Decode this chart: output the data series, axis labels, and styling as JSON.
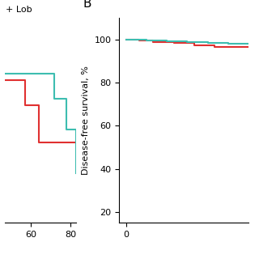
{
  "panel_a": {
    "label": "+ Lob",
    "xlim": [
      47,
      83
    ],
    "ylim": [
      72,
      105
    ],
    "xticks": [
      60,
      80
    ],
    "yticks": [],
    "red_x": [
      47,
      57,
      57,
      64,
      64,
      72,
      72,
      83
    ],
    "red_y": [
      95,
      95,
      91,
      91,
      85,
      85,
      85,
      85
    ],
    "teal_x": [
      47,
      62,
      62,
      72,
      72,
      78,
      78,
      83
    ],
    "teal_y": [
      96,
      96,
      96,
      92,
      92,
      87,
      87,
      80
    ],
    "red_color": "#e03030",
    "teal_color": "#3dbdb0",
    "linewidth": 1.5
  },
  "panel_b": {
    "panel_letter": "B",
    "xlim": [
      -1,
      18
    ],
    "ylim": [
      15,
      110
    ],
    "xticks": [
      0
    ],
    "yticks": [
      20,
      40,
      60,
      80,
      100
    ],
    "ylabel": "Disease-free survival, %",
    "red_x": [
      0,
      2,
      2,
      4,
      4,
      7,
      7,
      10,
      10,
      13,
      13,
      18
    ],
    "red_y": [
      100,
      100,
      99.5,
      99.5,
      99,
      99,
      98.5,
      98.5,
      97.5,
      97.5,
      96.5,
      96.5
    ],
    "teal_x": [
      0,
      3,
      3,
      6,
      6,
      9,
      9,
      12,
      12,
      15,
      15,
      18
    ],
    "teal_y": [
      100,
      100,
      99.7,
      99.7,
      99.3,
      99.3,
      99.0,
      99.0,
      98.5,
      98.5,
      98.0,
      98.0
    ],
    "red_color": "#e03030",
    "teal_color": "#3dbdb0",
    "linewidth": 1.5
  },
  "bg_color": "#ffffff",
  "tick_fontsize": 8,
  "label_fontsize": 8,
  "panel_letter_fontsize": 11
}
